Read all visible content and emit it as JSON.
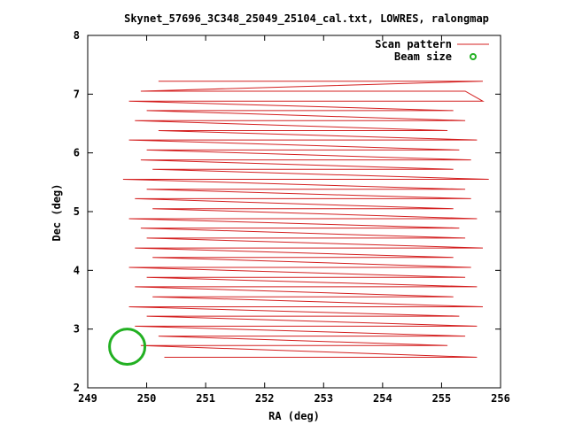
{
  "chart_data": {
    "type": "line",
    "title": "Skynet_57696_3C348_25049_25104_cal.txt, LOWRES, ralongmap",
    "xlabel": "RA (deg)",
    "ylabel": "Dec (deg)",
    "xlim": [
      249,
      256
    ],
    "ylim": [
      2,
      8
    ],
    "x_ticks": [
      {
        "value": 249,
        "label": "249"
      },
      {
        "value": 250,
        "label": "250"
      },
      {
        "value": 251,
        "label": "251"
      },
      {
        "value": 252,
        "label": "252"
      },
      {
        "value": 253,
        "label": "253"
      },
      {
        "value": 254,
        "label": "254"
      },
      {
        "value": 255,
        "label": "255"
      },
      {
        "value": 256,
        "label": "256"
      }
    ],
    "y_ticks": [
      {
        "value": 2,
        "label": "2"
      },
      {
        "value": 3,
        "label": "3"
      },
      {
        "value": 4,
        "label": "4"
      },
      {
        "value": 5,
        "label": "5"
      },
      {
        "value": 6,
        "label": "6"
      },
      {
        "value": 7,
        "label": "7"
      },
      {
        "value": 8,
        "label": "8"
      }
    ],
    "grid": false,
    "legend": {
      "position": "top-right",
      "entries": [
        {
          "label": "Scan pattern",
          "color": "#d42020",
          "marker": "line"
        },
        {
          "label": "Beam size",
          "color": "#22b022",
          "marker": "circle"
        }
      ]
    },
    "series": [
      {
        "name": "Scan pattern",
        "color": "#d42020",
        "x": [
          250.3,
          255.6,
          249.9,
          255.1,
          250.2,
          255.4,
          249.8,
          255.6,
          250.0,
          255.3,
          249.7,
          255.7,
          250.1,
          255.2,
          249.8,
          255.6,
          250.0,
          255.4,
          249.7,
          255.5,
          250.1,
          255.2,
          249.8,
          255.7,
          250.0,
          255.4,
          249.9,
          255.3,
          249.7,
          255.6,
          250.1,
          255.2,
          249.8,
          255.5,
          250.0,
          255.4,
          249.6,
          255.8,
          250.1,
          255.2,
          249.9,
          255.5,
          250.0,
          255.3,
          249.7,
          255.6,
          250.2,
          255.1,
          249.8,
          255.4,
          250.0,
          255.2,
          249.7,
          255.7
        ],
        "y": [
          2.52,
          2.52,
          2.72,
          2.72,
          2.88,
          2.88,
          3.05,
          3.05,
          3.22,
          3.22,
          3.38,
          3.38,
          3.55,
          3.55,
          3.72,
          3.72,
          3.88,
          3.88,
          4.05,
          4.05,
          4.22,
          4.22,
          4.38,
          4.38,
          4.55,
          4.55,
          4.72,
          4.72,
          4.88,
          4.88,
          5.05,
          5.05,
          5.22,
          5.22,
          5.38,
          5.38,
          5.55,
          5.55,
          5.72,
          5.72,
          5.88,
          5.88,
          6.05,
          6.05,
          6.22,
          6.22,
          6.38,
          6.38,
          6.55,
          6.55,
          6.72,
          6.72,
          6.88,
          6.88
        ]
      }
    ],
    "extra_rows": {
      "x": [
        255.4,
        249.9,
        255.7,
        250.2
      ],
      "y": [
        7.05,
        7.05,
        7.22,
        7.22
      ]
    },
    "beam": {
      "name": "Beam size",
      "center": [
        249.67,
        2.7
      ],
      "radius_x": 0.3,
      "radius_y": 0.3,
      "color": "#22b022"
    },
    "colors": {
      "axis": "#000000",
      "scan": "#d42020",
      "beam": "#22b022"
    }
  }
}
